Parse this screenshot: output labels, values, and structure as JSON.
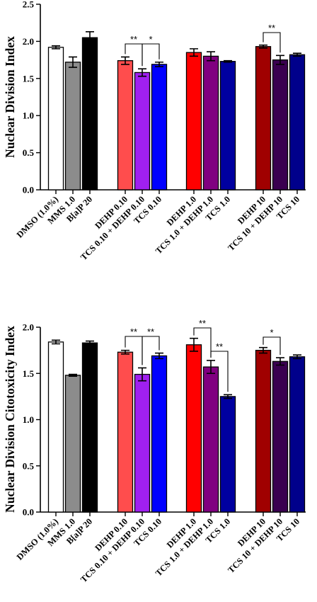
{
  "chart_data": [
    {
      "type": "bar",
      "ylabel": "Nuclear Division Index",
      "ylim": [
        0,
        2.5
      ],
      "yticks": [
        "0.0",
        "0.5",
        "1.0",
        "1.5",
        "2.0",
        "2.5"
      ],
      "categories": [
        "DMSO (1.0%)",
        "MMS 1.0",
        "B[a]P 20",
        "DEHP 0.10",
        "TCS 0.10 + DEHP 0.10",
        "TCS 0.10",
        "DEHP 1.0",
        "TCS 1.0 + DEHP 1.0",
        "TCS 1.0",
        "DEHP 10",
        "TCS 10 + DEHP 10",
        "TCS 10"
      ],
      "values": [
        1.92,
        1.72,
        2.05,
        1.74,
        1.58,
        1.69,
        1.85,
        1.8,
        1.73,
        1.93,
        1.75,
        1.82
      ],
      "errors": [
        0.02,
        0.07,
        0.08,
        0.05,
        0.05,
        0.03,
        0.05,
        0.06,
        0.01,
        0.02,
        0.06,
        0.02
      ],
      "colors": [
        "#ffffff",
        "#8c8c8c",
        "#000000",
        "#ff4d4d",
        "#a020f0",
        "#0000ff",
        "#ff0000",
        "#800080",
        "#0000a0",
        "#a00000",
        "#3a0050",
        "#00008b"
      ],
      "significance": [
        {
          "from": 3,
          "to": 4,
          "label": "**"
        },
        {
          "from": 4,
          "to": 5,
          "label": "*"
        },
        {
          "from": 9,
          "to": 10,
          "label": "**"
        }
      ]
    },
    {
      "type": "bar",
      "ylabel": "Nuclear Division Citotoxicity Index",
      "ylim": [
        0,
        2.0
      ],
      "yticks": [
        "0.0",
        "0.5",
        "1.0",
        "1.5",
        "2.0"
      ],
      "categories": [
        "DMSO (1.0%)",
        "MMS 1.0",
        "B[a]P 20",
        "DEHP 0.10",
        "TCS 0.10 + DEHP 0.10",
        "TCS 0.10",
        "DEHP 1.0",
        "TCS 1.0 + DEHP 1.0",
        "TCS 1.0",
        "DEHP 10",
        "TCS 10 + DEHP 10",
        "TCS 10"
      ],
      "values": [
        1.84,
        1.48,
        1.83,
        1.73,
        1.49,
        1.69,
        1.81,
        1.57,
        1.25,
        1.75,
        1.63,
        1.68
      ],
      "errors": [
        0.02,
        0.01,
        0.02,
        0.02,
        0.07,
        0.03,
        0.07,
        0.07,
        0.02,
        0.03,
        0.04,
        0.02
      ],
      "colors": [
        "#ffffff",
        "#8c8c8c",
        "#000000",
        "#ff4d4d",
        "#a020f0",
        "#0000ff",
        "#ff0000",
        "#800080",
        "#0000a0",
        "#a00000",
        "#3a0050",
        "#00008b"
      ],
      "significance": [
        {
          "from": 3,
          "to": 4,
          "label": "**"
        },
        {
          "from": 4,
          "to": 5,
          "label": "**"
        },
        {
          "from": 6,
          "to": 7,
          "label": "**"
        },
        {
          "from": 7,
          "to": 8,
          "label": "**"
        },
        {
          "from": 9,
          "to": 10,
          "label": "*"
        }
      ]
    }
  ]
}
